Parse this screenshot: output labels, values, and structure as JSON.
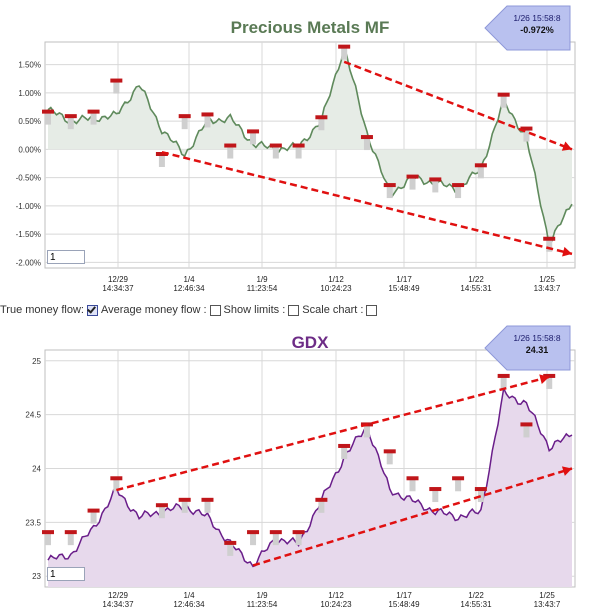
{
  "charts": [
    {
      "title": "Precious Metals MF",
      "title_color": "#5a7a55",
      "line_color": "#5f8a5c",
      "fill_color": "#e6ece6",
      "y_labels": [
        "1.50%",
        "1.00%",
        "0.50%",
        "0.00%",
        "-0.50%",
        "-1.00%",
        "-1.50%",
        "-2.00%"
      ],
      "y_values": [
        1.5,
        1.0,
        0.5,
        0.0,
        -0.5,
        -1.0,
        -1.5,
        -2.0
      ],
      "ylim": [
        -2.1,
        1.9
      ],
      "x_ticks": [
        {
          "date": "12/29",
          "time": "14:34:37"
        },
        {
          "date": "1/4",
          "time": "12:46:34"
        },
        {
          "date": "1/9",
          "time": "11:23:54"
        },
        {
          "date": "1/12",
          "time": "10:24:23"
        },
        {
          "date": "1/17",
          "time": "15:48:49"
        },
        {
          "date": "1/22",
          "time": "14:55:31"
        },
        {
          "date": "1/25",
          "time": "13:43:7"
        }
      ],
      "tag_time": "1/26 15:58:8",
      "tag_value": "-0.972%",
      "input_value": "1"
    },
    {
      "title": "GDX",
      "title_color": "#6d2c86",
      "line_color": "#6a1e8a",
      "fill_color": "#e7d9ec",
      "y_labels": [
        "25",
        "24.5",
        "24",
        "23.5",
        "23"
      ],
      "y_values": [
        25,
        24.5,
        24,
        23.5,
        23
      ],
      "ylim": [
        22.9,
        25.1
      ],
      "x_ticks": [
        {
          "date": "12/29",
          "time": "14:34:37"
        },
        {
          "date": "1/4",
          "time": "12:46:34"
        },
        {
          "date": "1/9",
          "time": "11:23:54"
        },
        {
          "date": "1/12",
          "time": "10:24:23"
        },
        {
          "date": "1/17",
          "time": "15:48:49"
        },
        {
          "date": "1/22",
          "time": "14:55:31"
        },
        {
          "date": "1/25",
          "time": "13:43:7"
        }
      ],
      "tag_time": "1/26 15:58:8",
      "tag_value": "24.31",
      "input_value": "1"
    }
  ],
  "options": {
    "true_money_flow": "True money flow:",
    "average_money_flow": "Average money flow :",
    "show_limits": "Show limits :",
    "scale_chart": "Scale chart :",
    "average_money_flow_checked": true,
    "show_limits_checked": false,
    "scale_chart_checked": false
  },
  "chart_data": [
    {
      "type": "line",
      "title": "Precious Metals MF",
      "xlabel": "",
      "ylabel": "",
      "ylim": [
        -2.1,
        1.9
      ],
      "x": [
        "12/27",
        "12/28",
        "12/29",
        "12/30",
        "1/2",
        "1/3",
        "1/4",
        "1/5",
        "1/6",
        "1/9",
        "1/10",
        "1/11",
        "1/12",
        "1/13",
        "1/16",
        "1/17",
        "1/18",
        "1/19",
        "1/20",
        "1/22",
        "1/23",
        "1/24",
        "1/25",
        "1/26"
      ],
      "series": [
        {
          "values": [
            0.7,
            0.5,
            0.55,
            0.6,
            1.15,
            0.35,
            -0.1,
            0.5,
            0.55,
            0.1,
            0.0,
            0.05,
            0.5,
            1.8,
            0.3,
            -0.8,
            -0.5,
            -0.6,
            -0.7,
            -0.35,
            0.85,
            0.2,
            -1.65,
            -0.97
          ]
        }
      ],
      "markers": [
        {
          "x": "12/27",
          "y": 0.65
        },
        {
          "x": "12/28",
          "y": 0.57
        },
        {
          "x": "12/29",
          "y": 0.65
        },
        {
          "x": "12/30",
          "y": 1.2
        },
        {
          "x": "1/3",
          "y": -0.1
        },
        {
          "x": "1/4",
          "y": 0.57
        },
        {
          "x": "1/5",
          "y": 0.6
        },
        {
          "x": "1/6",
          "y": 0.05
        },
        {
          "x": "1/9",
          "y": 0.3
        },
        {
          "x": "1/10",
          "y": 0.05
        },
        {
          "x": "1/11",
          "y": 0.05
        },
        {
          "x": "1/12",
          "y": 0.55
        },
        {
          "x": "1/13",
          "y": 1.8
        },
        {
          "x": "1/16",
          "y": 0.2
        },
        {
          "x": "1/17",
          "y": -0.65
        },
        {
          "x": "1/18",
          "y": -0.5
        },
        {
          "x": "1/19",
          "y": -0.55
        },
        {
          "x": "1/20",
          "y": -0.65
        },
        {
          "x": "1/22",
          "y": -0.3
        },
        {
          "x": "1/23",
          "y": 0.95
        },
        {
          "x": "1/24",
          "y": 0.35
        },
        {
          "x": "1/25",
          "y": -1.6
        }
      ],
      "trendlines": [
        {
          "from": {
            "x": "1/13",
            "y": 1.55
          },
          "to": {
            "x": "1/26",
            "y": 0.0
          }
        },
        {
          "from": {
            "x": "1/3",
            "y": -0.05
          },
          "to": {
            "x": "1/26",
            "y": -1.85
          }
        }
      ]
    },
    {
      "type": "area",
      "title": "GDX",
      "xlabel": "",
      "ylabel": "",
      "ylim": [
        22.9,
        25.1
      ],
      "x": [
        "12/27",
        "12/28",
        "12/29",
        "12/30",
        "1/2",
        "1/3",
        "1/4",
        "1/5",
        "1/6",
        "1/9",
        "1/10",
        "1/11",
        "1/12",
        "1/13",
        "1/16",
        "1/17",
        "1/18",
        "1/19",
        "1/20",
        "1/22",
        "1/23",
        "1/24",
        "1/25",
        "1/26"
      ],
      "series": [
        {
          "values": [
            23.15,
            23.2,
            23.45,
            23.8,
            23.55,
            23.6,
            23.65,
            23.55,
            23.3,
            23.1,
            23.35,
            23.3,
            23.7,
            24.1,
            24.4,
            23.8,
            23.7,
            23.6,
            23.55,
            23.6,
            24.7,
            24.6,
            24.2,
            24.31
          ]
        }
      ],
      "markers": [
        {
          "x": "12/27",
          "y": 23.4
        },
        {
          "x": "12/28",
          "y": 23.4
        },
        {
          "x": "12/29",
          "y": 23.6
        },
        {
          "x": "12/30",
          "y": 23.9
        },
        {
          "x": "1/3",
          "y": 23.65
        },
        {
          "x": "1/4",
          "y": 23.7
        },
        {
          "x": "1/5",
          "y": 23.7
        },
        {
          "x": "1/6",
          "y": 23.3
        },
        {
          "x": "1/9",
          "y": 23.4
        },
        {
          "x": "1/10",
          "y": 23.4
        },
        {
          "x": "1/11",
          "y": 23.4
        },
        {
          "x": "1/12",
          "y": 23.7
        },
        {
          "x": "1/13",
          "y": 24.2
        },
        {
          "x": "1/16",
          "y": 24.4
        },
        {
          "x": "1/17",
          "y": 24.15
        },
        {
          "x": "1/18",
          "y": 23.9
        },
        {
          "x": "1/19",
          "y": 23.8
        },
        {
          "x": "1/20",
          "y": 23.9
        },
        {
          "x": "1/22",
          "y": 23.8
        },
        {
          "x": "1/23",
          "y": 24.85
        },
        {
          "x": "1/24",
          "y": 24.4
        },
        {
          "x": "1/25",
          "y": 24.85
        }
      ],
      "trendlines": [
        {
          "from": {
            "x": "12/30",
            "y": 23.8
          },
          "to": {
            "x": "1/25",
            "y": 24.85
          }
        },
        {
          "from": {
            "x": "1/9",
            "y": 23.1
          },
          "to": {
            "x": "1/26",
            "y": 24.0
          }
        }
      ]
    }
  ]
}
